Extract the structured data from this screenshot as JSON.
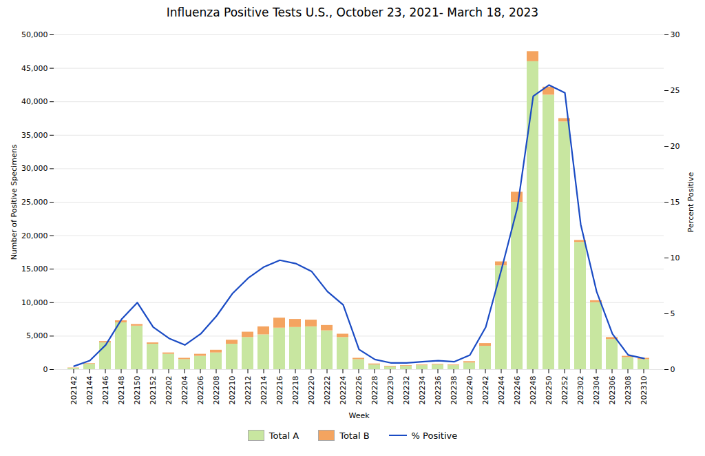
{
  "chart_data": {
    "type": "bar",
    "title": "Influenza Positive Tests U.S.,  October 23, 2021- March 18, 2023",
    "xlabel": "Week",
    "ylabel": "Number of Positive Specimens",
    "y2label": "Percent Positive",
    "categories": [
      "202142",
      "202144",
      "202146",
      "202148",
      "202150",
      "202152",
      "202202",
      "202204",
      "202206",
      "202208",
      "202210",
      "202212",
      "202214",
      "202216",
      "202218",
      "202220",
      "202222",
      "202224",
      "202226",
      "202228",
      "202230",
      "202232",
      "202234",
      "202236",
      "202238",
      "202240",
      "202242",
      "202244",
      "202246",
      "202248",
      "202250",
      "202252",
      "202302",
      "202304",
      "202306",
      "202308",
      "202310"
    ],
    "series": [
      {
        "name": "Total A",
        "type": "bar",
        "color": "#c8e6a0",
        "values": [
          200,
          800,
          4000,
          7000,
          6500,
          3800,
          2300,
          1500,
          2000,
          2500,
          3800,
          4800,
          5200,
          6200,
          6300,
          6400,
          5800,
          4800,
          1500,
          700,
          400,
          500,
          600,
          700,
          600,
          1000,
          3500,
          15500,
          25000,
          46000,
          41000,
          37000,
          19000,
          10000,
          4500,
          1800,
          1500
        ]
      },
      {
        "name": "Total B",
        "type": "bar",
        "color": "#f4a460",
        "values": [
          50,
          100,
          200,
          300,
          250,
          200,
          200,
          200,
          300,
          400,
          600,
          800,
          1200,
          1500,
          1200,
          1000,
          800,
          500,
          200,
          150,
          100,
          100,
          100,
          100,
          100,
          200,
          400,
          600,
          1500,
          1500,
          1200,
          500,
          300,
          300,
          300,
          200,
          200
        ]
      },
      {
        "name": "% Positive",
        "type": "line",
        "axis": "y2",
        "color": "#1a4bc4",
        "values": [
          0.3,
          0.8,
          2.2,
          4.5,
          6.0,
          3.8,
          2.8,
          2.2,
          3.2,
          4.8,
          6.8,
          8.2,
          9.2,
          9.8,
          9.5,
          8.8,
          7.0,
          5.8,
          1.8,
          0.9,
          0.6,
          0.6,
          0.7,
          0.8,
          0.7,
          1.3,
          3.8,
          9.0,
          14.5,
          24.5,
          25.5,
          24.8,
          13.0,
          7.0,
          3.2,
          1.3,
          1.0
        ]
      }
    ],
    "stacked": true,
    "ylim": [
      0,
      50000
    ],
    "yticks": [
      0,
      {
        "value": 5000,
        "label": "5,000"
      },
      {
        "value": 10000,
        "label": "10,000"
      },
      {
        "value": 15000,
        "label": "15,000"
      },
      {
        "value": 20000,
        "label": "20,000"
      },
      {
        "value": 25000,
        "label": "25,000"
      },
      {
        "value": 30000,
        "label": "30,000"
      },
      {
        "value": 35000,
        "label": "35,000"
      },
      {
        "value": 40000,
        "label": "40,000"
      },
      {
        "value": 45000,
        "label": "45,000"
      },
      {
        "value": 50000,
        "label": "50,000"
      }
    ],
    "y2lim": [
      0,
      30
    ],
    "y2ticks": [
      0,
      5,
      10,
      15,
      20,
      25,
      30
    ],
    "grid": true,
    "legend": "bottom"
  }
}
